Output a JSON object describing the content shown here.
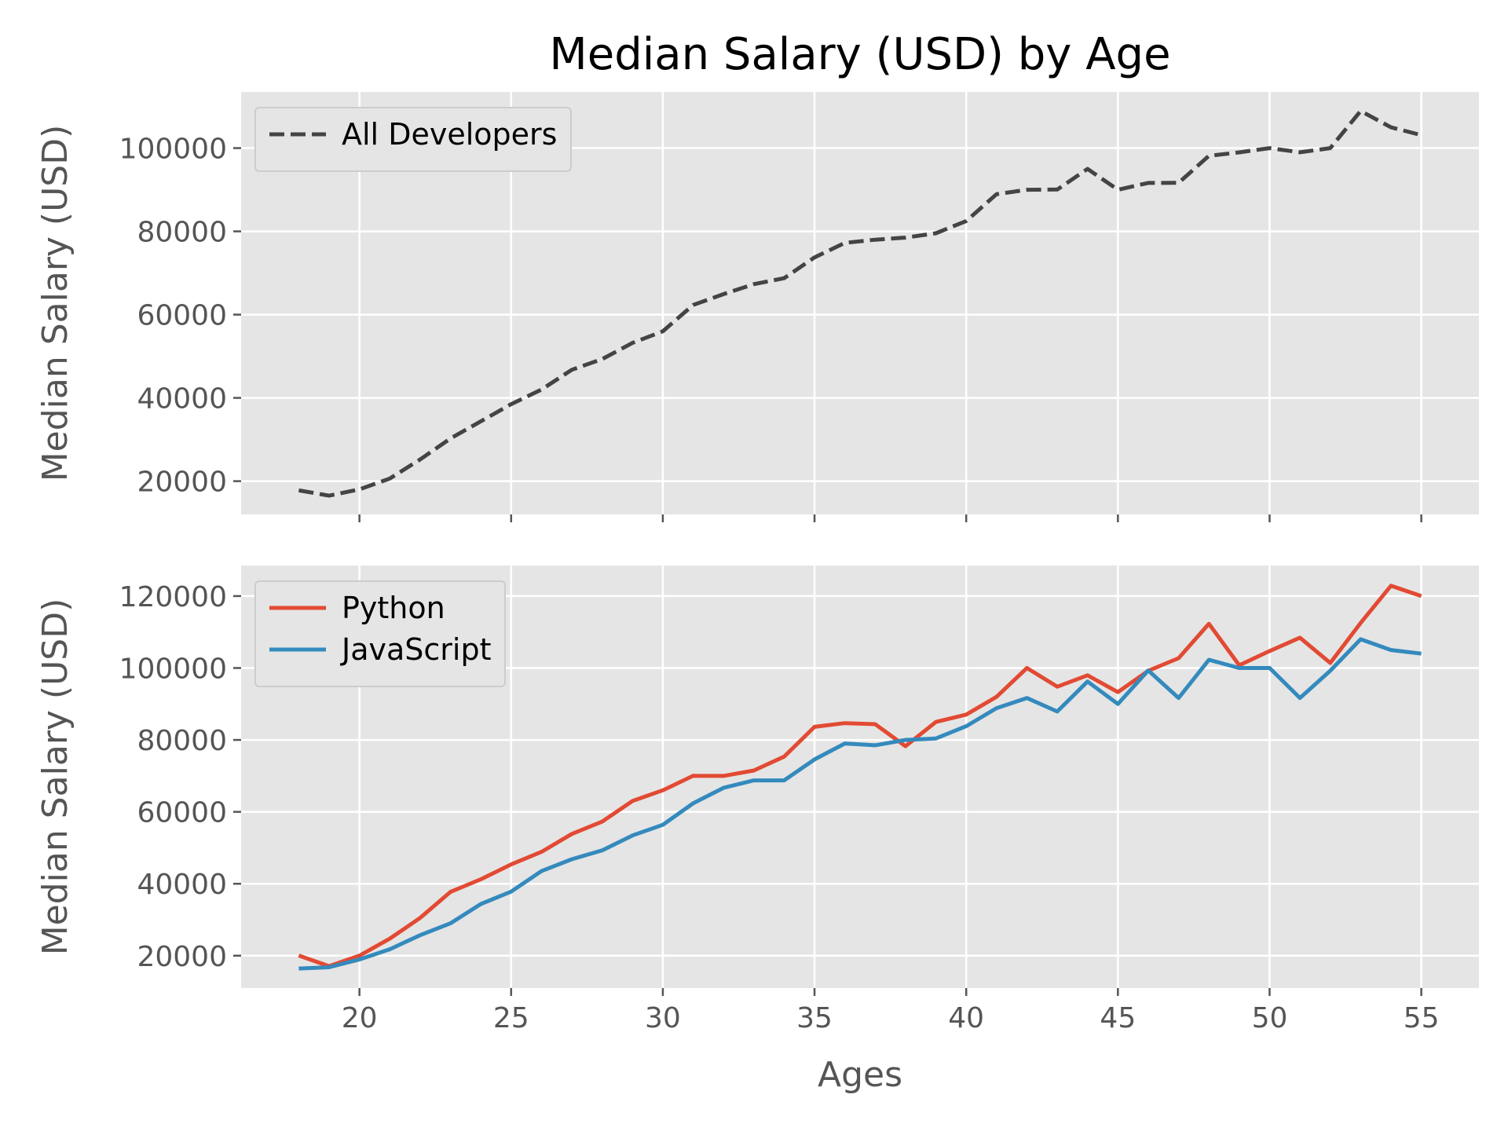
{
  "chart_data": {
    "type": "line",
    "title": "Median Salary (USD) by Age",
    "xlabel": "Ages",
    "x": [
      18,
      19,
      20,
      21,
      22,
      23,
      24,
      25,
      26,
      27,
      28,
      29,
      30,
      31,
      32,
      33,
      34,
      35,
      36,
      37,
      38,
      39,
      40,
      41,
      42,
      43,
      44,
      45,
      46,
      47,
      48,
      49,
      50,
      51,
      52,
      53,
      54,
      55
    ],
    "xlim": [
      16.1,
      56.9
    ],
    "xticks": [
      20,
      25,
      30,
      35,
      40,
      45,
      50,
      55
    ],
    "grid": true,
    "subplots": [
      {
        "ylabel": "Median Salary (USD)",
        "ylim": [
          12000,
          113500
        ],
        "yticks": [
          20000,
          40000,
          60000,
          80000,
          100000
        ],
        "legend_position": "upper-left",
        "show_xticklabels": false,
        "series": [
          {
            "name": "All Developers",
            "color": "#444444",
            "dashed": true,
            "values": [
              17784,
              16500,
              18012,
              20628,
              25206,
              30252,
              34368,
              38496,
              42000,
              46752,
              49320,
              53200,
              56000,
              62316,
              64928,
              67317,
              68748,
              73752,
              77232,
              78000,
              78508,
              79536,
              82488,
              88935,
              90000,
              90056,
              95000,
              90000,
              91633,
              91660,
              98150,
              98964,
              100000,
              98988,
              100000,
              108923,
              105000,
              103117
            ]
          }
        ]
      },
      {
        "ylabel": "Median Salary (USD)",
        "ylim": [
          11000,
          128500
        ],
        "yticks": [
          20000,
          40000,
          60000,
          80000,
          100000,
          120000
        ],
        "legend_position": "upper-left",
        "show_xticklabels": true,
        "series": [
          {
            "name": "Python",
            "color": "#e24a33",
            "dashed": false,
            "values": [
              20046,
              17100,
              20000,
              24744,
              30500,
              37732,
              41247,
              45372,
              48876,
              53850,
              57287,
              63016,
              65998,
              70003,
              70000,
              71496,
              75370,
              83640,
              84666,
              84392,
              78254,
              85000,
              87038,
              91991,
              100000,
              94796,
              97962,
              93302,
              99240,
              102736,
              112285,
              100771,
              104708,
              108423,
              101407,
              112542,
              122870,
              120000
            ]
          },
          {
            "name": "JavaScript",
            "color": "#348abd",
            "dashed": false,
            "values": [
              16446,
              16791,
              18942,
              21780,
              25704,
              29000,
              34372,
              37810,
              43515,
              46823,
              49293,
              53437,
              56373,
              62375,
              66674,
              68745,
              68746,
              74583,
              79000,
              78508,
              79996,
              80403,
              83820,
              88833,
              91660,
              87892,
              96243,
              90000,
              99313,
              91660,
              102264,
              100000,
              100000,
              91660,
              99240,
              108000,
              105000,
              104000
            ]
          }
        ]
      }
    ]
  }
}
